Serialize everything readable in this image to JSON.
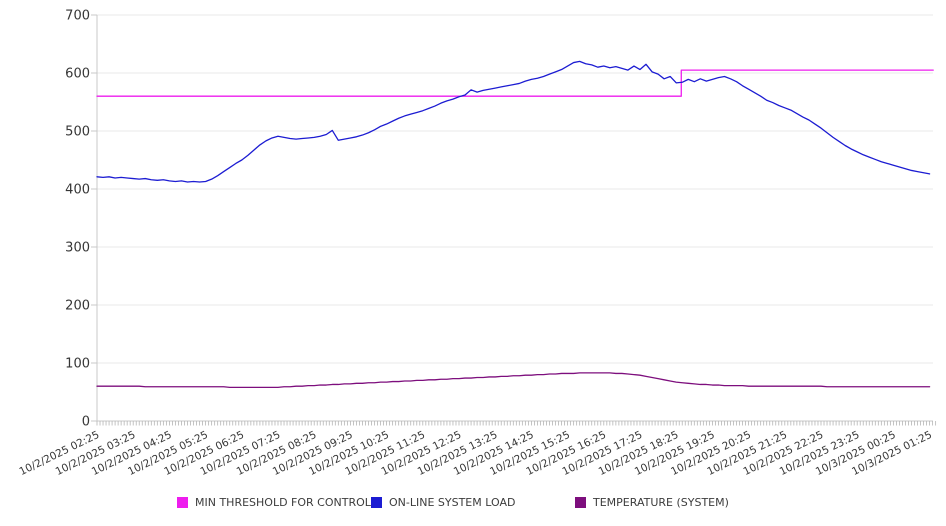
{
  "chart_data": {
    "type": "line",
    "title": "",
    "grid": true,
    "legend_position": "bottom",
    "y_axis": {
      "min": 0,
      "max": 700,
      "step": 100,
      "tick_labels": [
        "0",
        "100",
        "200",
        "300",
        "400",
        "500",
        "600",
        "700"
      ]
    },
    "x_axis": {
      "start_label": "10/2/2025 02:25",
      "minor_tick_interval_minutes": 5,
      "tick_labels": [
        "10/2/2025 02:25",
        "10/2/2025 03:25",
        "10/2/2025 04:25",
        "10/2/2025 05:25",
        "10/2/2025 06:25",
        "10/2/2025 07:25",
        "10/2/2025 08:25",
        "10/2/2025 09:25",
        "10/2/2025 10:25",
        "10/2/2025 11:25",
        "10/2/2025 12:25",
        "10/2/2025 13:25",
        "10/2/2025 14:25",
        "10/2/2025 15:25",
        "10/2/2025 16:25",
        "10/2/2025 17:25",
        "10/2/2025 18:25",
        "10/2/2025 19:25",
        "10/2/2025 20:25",
        "10/2/2025 21:25",
        "10/2/2025 22:25",
        "10/2/2025 23:25",
        "10/3/2025 00:25",
        "10/3/2025 01:25"
      ]
    },
    "sample_interval_minutes": 10,
    "series": [
      {
        "name": "MIN THRESHOLD FOR CONTROL",
        "color": "#ee1dee",
        "step_time_label": "10/2/2025 18:33",
        "x_hours": [
          0,
          16.14,
          16.14,
          23.1
        ],
        "values": [
          560,
          560,
          605,
          605
        ]
      },
      {
        "name": "ON-LINE SYSTEM LOAD",
        "color": "#1c1cd2",
        "values": [
          421,
          420,
          421,
          419,
          420,
          419,
          418,
          417,
          418,
          416,
          415,
          416,
          414,
          413,
          414,
          412,
          413,
          412,
          413,
          417,
          423,
          430,
          437,
          444,
          450,
          458,
          467,
          476,
          483,
          488,
          491,
          489,
          487,
          486,
          487,
          488,
          489,
          491,
          494,
          501,
          484,
          486,
          488,
          490,
          493,
          497,
          502,
          508,
          512,
          517,
          522,
          526,
          529,
          532,
          535,
          539,
          543,
          548,
          552,
          555,
          559,
          562,
          571,
          567,
          570,
          572,
          574,
          576,
          578,
          580,
          582,
          586,
          589,
          591,
          594,
          598,
          602,
          606,
          612,
          618,
          620,
          616,
          614,
          610,
          612,
          609,
          611,
          608,
          605,
          612,
          606,
          615,
          602,
          598,
          590,
          594,
          583,
          584,
          589,
          585,
          590,
          586,
          589,
          592,
          594,
          590,
          585,
          578,
          572,
          566,
          560,
          553,
          549,
          544,
          540,
          536,
          530,
          524,
          519,
          512,
          505,
          497,
          489,
          482,
          475,
          469,
          464,
          459,
          455,
          451,
          447,
          444,
          441,
          438,
          435,
          432,
          430,
          428,
          426
        ]
      },
      {
        "name": "TEMPERATURE (SYSTEM)",
        "color": "#7d0e7d",
        "values": [
          60,
          60,
          60,
          60,
          60,
          60,
          60,
          60,
          59,
          59,
          59,
          59,
          59,
          59,
          59,
          59,
          59,
          59,
          59,
          59,
          59,
          59,
          58,
          58,
          58,
          58,
          58,
          58,
          58,
          58,
          58,
          59,
          59,
          60,
          60,
          61,
          61,
          62,
          62,
          63,
          63,
          64,
          64,
          65,
          65,
          66,
          66,
          67,
          67,
          68,
          68,
          69,
          69,
          70,
          70,
          71,
          71,
          72,
          72,
          73,
          73,
          74,
          74,
          75,
          75,
          76,
          76,
          77,
          77,
          78,
          78,
          79,
          79,
          80,
          80,
          81,
          81,
          82,
          82,
          82,
          83,
          83,
          83,
          83,
          83,
          83,
          82,
          82,
          81,
          80,
          79,
          77,
          75,
          73,
          71,
          69,
          67,
          66,
          65,
          64,
          63,
          63,
          62,
          62,
          61,
          61,
          61,
          61,
          60,
          60,
          60,
          60,
          60,
          60,
          60,
          60,
          60,
          60,
          60,
          60,
          60,
          59,
          59,
          59,
          59,
          59,
          59,
          59,
          59,
          59,
          59,
          59,
          59,
          59,
          59,
          59,
          59,
          59,
          59
        ]
      }
    ]
  },
  "legend": {
    "items": [
      {
        "label": "MIN THRESHOLD FOR CONTROL",
        "color": "#ee1dee"
      },
      {
        "label": "ON-LINE SYSTEM LOAD",
        "color": "#1c1cd2"
      },
      {
        "label": "TEMPERATURE (SYSTEM)",
        "color": "#7d0e7d"
      }
    ]
  }
}
